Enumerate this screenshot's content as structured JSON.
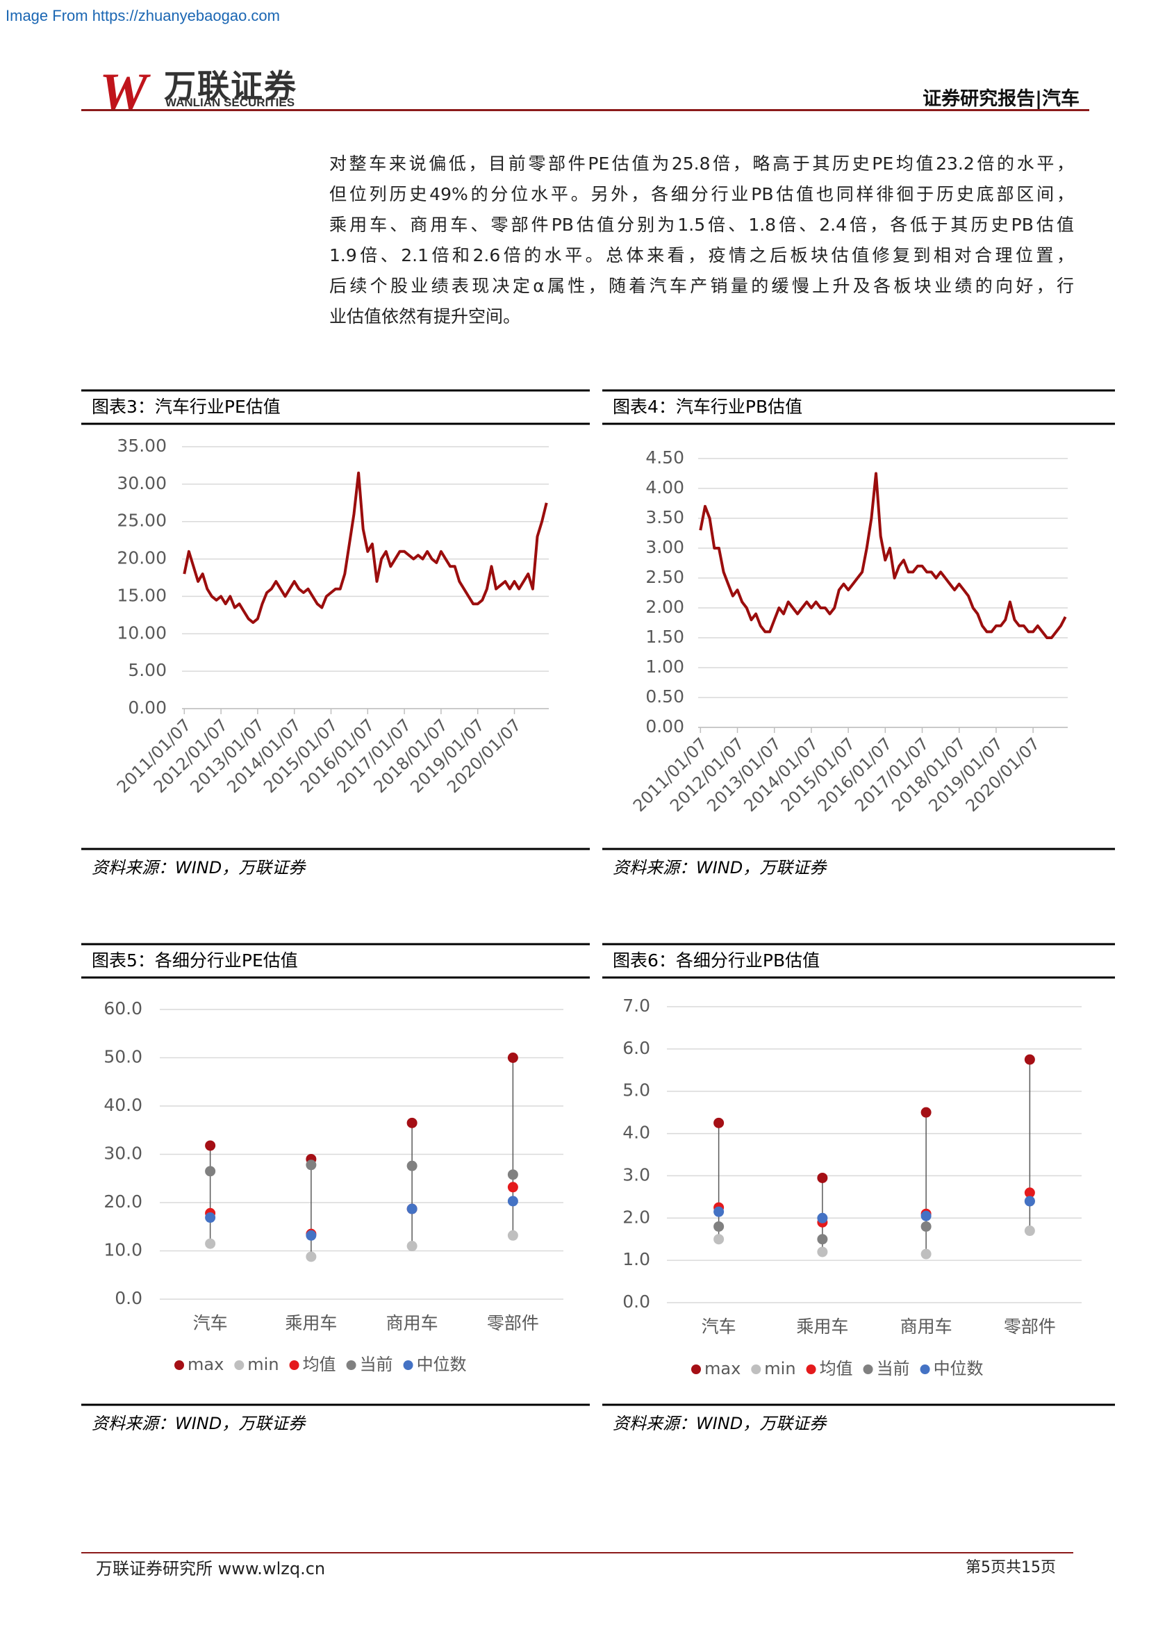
{
  "watermark": "Image From https://zhuanyebaogao.com",
  "header": {
    "logo_cn": "万联证券",
    "logo_en": "WANLIAN SECURITIES",
    "report": "证券研究报告|汽车"
  },
  "paragraph": [
    "对整车来说偏低，目前零部件PE估值为25.8倍，略高于其历史PE均值23.2倍的水平，",
    "但位列历史49%的分位水平。另外，各细分行业PB估值也同样徘徊于历史底部区间，",
    "乘用车、商用车、零部件PB估值分别为1.5倍、1.8倍、2.4倍，各低于其历史PB估值",
    "1.9倍、2.1倍和2.6倍的水平。总体来看，疫情之后板块估值修复到相对合理位置，",
    "后续个股业绩表现决定α属性，随着汽车产销量的缓慢上升及各板块业绩的向好，行",
    "业估值依然有提升空间。"
  ],
  "chart_data": [
    {
      "type": "line",
      "title": "图表3：汽车行业PE估值",
      "source": "资料来源：WIND，万联证券",
      "categories": [
        "2011/01/07",
        null,
        null,
        null,
        null,
        null,
        null,
        null,
        "2012/01/07",
        null,
        null,
        null,
        null,
        null,
        null,
        null,
        "2013/01/07",
        null,
        null,
        null,
        null,
        null,
        null,
        null,
        "2014/01/07",
        null,
        null,
        null,
        null,
        null,
        null,
        null,
        "2015/01/07",
        null,
        null,
        null,
        null,
        null,
        null,
        null,
        "2016/01/07",
        null,
        null,
        null,
        null,
        null,
        null,
        null,
        "2017/01/07",
        null,
        null,
        null,
        null,
        null,
        null,
        null,
        "2018/01/07",
        null,
        null,
        null,
        null,
        null,
        null,
        null,
        "2019/01/07",
        null,
        null,
        null,
        null,
        null,
        null,
        null,
        "2020/01/07",
        null,
        null,
        null,
        null,
        null,
        null,
        null
      ],
      "series": [
        {
          "name": "PE",
          "color": "#9b0d0d",
          "values": [
            18,
            21,
            19,
            17,
            18,
            16,
            15,
            14.5,
            15,
            14,
            15,
            13.5,
            14,
            13,
            12,
            11.5,
            12,
            14,
            15.5,
            16,
            17,
            16,
            15,
            16,
            17,
            16,
            15.5,
            16,
            15,
            14,
            13.5,
            15,
            15.5,
            16,
            16,
            18,
            22,
            26,
            31.5,
            24,
            21,
            22,
            17,
            20,
            21,
            19,
            20,
            21,
            21,
            20.5,
            20,
            20.5,
            20,
            21,
            20,
            19.5,
            21,
            20,
            19,
            19,
            17,
            16,
            15,
            14,
            14,
            14.5,
            16,
            19,
            16,
            16.5,
            17,
            16,
            17,
            16,
            17,
            18,
            16,
            23,
            25,
            27.5
          ]
        }
      ],
      "ylim": [
        0,
        35
      ],
      "yticks": [
        {
          "value": 0,
          "label": "0.00"
        },
        {
          "value": 5,
          "label": "5.00"
        },
        {
          "value": 10,
          "label": "10.00"
        },
        {
          "value": 15,
          "label": "15.00"
        },
        {
          "value": 20,
          "label": "20.00"
        },
        {
          "value": 25,
          "label": "25.00"
        },
        {
          "value": 30,
          "label": "30.00"
        },
        {
          "value": 35,
          "label": "35.00"
        }
      ],
      "grid": true
    },
    {
      "type": "line",
      "title": "图表4：汽车行业PB估值",
      "source": "资料来源：WIND，万联证券",
      "categories": [
        "2011/01/07",
        null,
        null,
        null,
        null,
        null,
        null,
        null,
        "2012/01/07",
        null,
        null,
        null,
        null,
        null,
        null,
        null,
        "2013/01/07",
        null,
        null,
        null,
        null,
        null,
        null,
        null,
        "2014/01/07",
        null,
        null,
        null,
        null,
        null,
        null,
        null,
        "2015/01/07",
        null,
        null,
        null,
        null,
        null,
        null,
        null,
        "2016/01/07",
        null,
        null,
        null,
        null,
        null,
        null,
        null,
        "2017/01/07",
        null,
        null,
        null,
        null,
        null,
        null,
        null,
        "2018/01/07",
        null,
        null,
        null,
        null,
        null,
        null,
        null,
        "2019/01/07",
        null,
        null,
        null,
        null,
        null,
        null,
        null,
        "2020/01/07",
        null,
        null,
        null,
        null,
        null,
        null,
        null
      ],
      "series": [
        {
          "name": "PB",
          "color": "#9b0d0d",
          "values": [
            3.3,
            3.7,
            3.5,
            3.0,
            3.0,
            2.6,
            2.4,
            2.2,
            2.3,
            2.1,
            2.0,
            1.8,
            1.9,
            1.7,
            1.6,
            1.6,
            1.8,
            2.0,
            1.9,
            2.1,
            2.0,
            1.9,
            2.0,
            2.1,
            2.0,
            2.1,
            2.0,
            2.0,
            1.9,
            2.0,
            2.3,
            2.4,
            2.3,
            2.4,
            2.5,
            2.6,
            3.0,
            3.5,
            4.25,
            3.2,
            2.8,
            3.0,
            2.5,
            2.7,
            2.8,
            2.6,
            2.6,
            2.7,
            2.7,
            2.6,
            2.6,
            2.5,
            2.6,
            2.5,
            2.4,
            2.3,
            2.4,
            2.3,
            2.2,
            2.0,
            1.9,
            1.7,
            1.6,
            1.6,
            1.7,
            1.7,
            1.8,
            2.1,
            1.8,
            1.7,
            1.7,
            1.6,
            1.6,
            1.7,
            1.6,
            1.5,
            1.5,
            1.6,
            1.7,
            1.85
          ]
        }
      ],
      "ylim": [
        0,
        4.5
      ],
      "yticks": [
        {
          "value": 0,
          "label": "0.00"
        },
        {
          "value": 0.5,
          "label": "0.50"
        },
        {
          "value": 1,
          "label": "1.00"
        },
        {
          "value": 1.5,
          "label": "1.50"
        },
        {
          "value": 2,
          "label": "2.00"
        },
        {
          "value": 2.5,
          "label": "2.50"
        },
        {
          "value": 3,
          "label": "3.00"
        },
        {
          "value": 3.5,
          "label": "3.50"
        },
        {
          "value": 4,
          "label": "4.00"
        },
        {
          "value": 4.5,
          "label": "4.50"
        }
      ],
      "grid": true
    },
    {
      "type": "dot",
      "title": "图表5：各细分行业PE估值",
      "source": "资料来源：WIND，万联证券",
      "categories": [
        "汽车",
        "乘用车",
        "商用车",
        "零部件"
      ],
      "series": [
        {
          "name": "max",
          "color": "#a50f15",
          "values": [
            31.8,
            29,
            36.5,
            50
          ]
        },
        {
          "name": "min",
          "color": "#bfbfbf",
          "values": [
            11.5,
            8.8,
            11,
            13.2
          ]
        },
        {
          "name": "均值",
          "color": "#e41a1c",
          "values": [
            17.8,
            13.5,
            18.7,
            23.2
          ]
        },
        {
          "name": "当前",
          "color": "#808080",
          "values": [
            26.5,
            27.8,
            27.6,
            25.8
          ]
        },
        {
          "name": "中位数",
          "color": "#4472c4",
          "values": [
            16.9,
            13.2,
            18.7,
            20.3
          ]
        }
      ],
      "ylim": [
        0,
        60
      ],
      "yticks": [
        {
          "value": 0,
          "label": "0.0"
        },
        {
          "value": 10,
          "label": "10.0"
        },
        {
          "value": 20,
          "label": "20.0"
        },
        {
          "value": 30,
          "label": "30.0"
        },
        {
          "value": 40,
          "label": "40.0"
        },
        {
          "value": 50,
          "label": "50.0"
        },
        {
          "value": 60,
          "label": "60.0"
        }
      ],
      "grid": true,
      "legend": "bottom"
    },
    {
      "type": "dot",
      "title": "图表6：各细分行业PB估值",
      "source": "资料来源：WIND，万联证券",
      "categories": [
        "汽车",
        "乘用车",
        "商用车",
        "零部件"
      ],
      "series": [
        {
          "name": "max",
          "color": "#a50f15",
          "values": [
            4.25,
            2.95,
            4.5,
            5.75
          ]
        },
        {
          "name": "min",
          "color": "#bfbfbf",
          "values": [
            1.5,
            1.2,
            1.15,
            1.7
          ]
        },
        {
          "name": "均值",
          "color": "#e41a1c",
          "values": [
            2.25,
            1.9,
            2.1,
            2.6
          ]
        },
        {
          "name": "当前",
          "color": "#808080",
          "values": [
            1.8,
            1.5,
            1.8,
            2.4
          ]
        },
        {
          "name": "中位数",
          "color": "#4472c4",
          "values": [
            2.15,
            2.0,
            2.05,
            2.4
          ]
        }
      ],
      "ylim": [
        0,
        7
      ],
      "yticks": [
        {
          "value": 0,
          "label": "0.0"
        },
        {
          "value": 1,
          "label": "1.0"
        },
        {
          "value": 2,
          "label": "2.0"
        },
        {
          "value": 3,
          "label": "3.0"
        },
        {
          "value": 4,
          "label": "4.0"
        },
        {
          "value": 5,
          "label": "5.0"
        },
        {
          "value": 6,
          "label": "6.0"
        },
        {
          "value": 7,
          "label": "7.0"
        }
      ],
      "grid": true,
      "legend": "bottom"
    }
  ],
  "footer": {
    "left": "万联证券研究所 www.wlzq.cn",
    "right": "第5页共15页"
  }
}
